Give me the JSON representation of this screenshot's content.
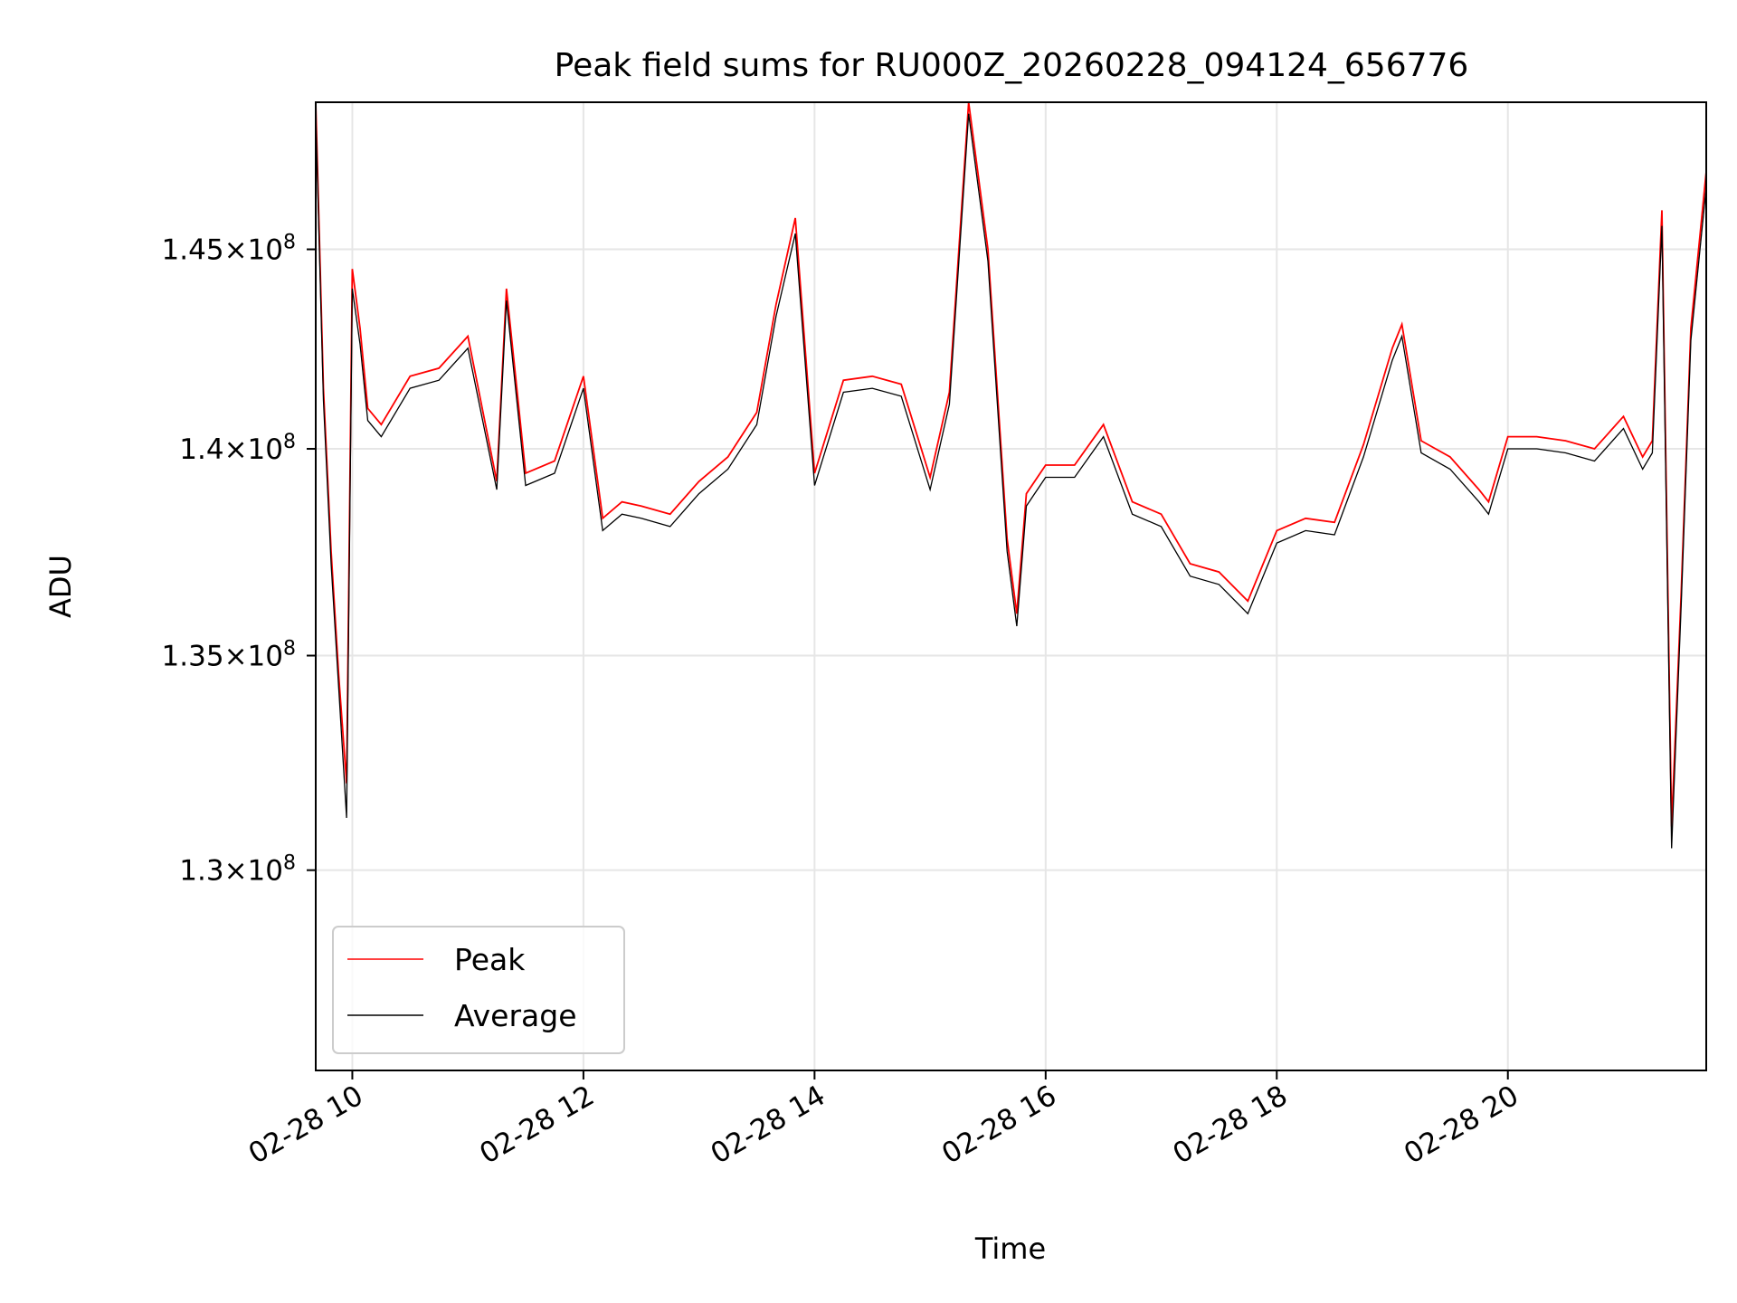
{
  "chart_data": {
    "type": "line",
    "title": "Peak field sums for RU000Z_20260228_094124_656776",
    "xlabel": "Time",
    "ylabel": "ADU",
    "y_scale": "log",
    "ylim": [
      125500000,
      148800000
    ],
    "xlim": [
      "02-28 09:41",
      "02-28 21:43"
    ],
    "grid": true,
    "legend_position": "lower-left",
    "x_ticks": [
      {
        "t": "02-28 10:00",
        "label": "02-28 10"
      },
      {
        "t": "02-28 12:00",
        "label": "02-28 12"
      },
      {
        "t": "02-28 14:00",
        "label": "02-28 14"
      },
      {
        "t": "02-28 16:00",
        "label": "02-28 16"
      },
      {
        "t": "02-28 18:00",
        "label": "02-28 18"
      },
      {
        "t": "02-28 20:00",
        "label": "02-28 20"
      }
    ],
    "y_ticks": [
      {
        "value": 130000000,
        "mantissa": "1.3",
        "exp": "8"
      },
      {
        "value": 135000000,
        "mantissa": "1.35",
        "exp": "8"
      },
      {
        "value": 140000000,
        "mantissa": "1.4",
        "exp": "8"
      },
      {
        "value": 145000000,
        "mantissa": "1.45",
        "exp": "8"
      }
    ],
    "x": [
      "02-28 09:41",
      "02-28 09:45",
      "02-28 09:49",
      "02-28 09:53",
      "02-28 09:57",
      "02-28 10:00",
      "02-28 10:04",
      "02-28 10:08",
      "02-28 10:15",
      "02-28 10:30",
      "02-28 10:45",
      "02-28 11:00",
      "02-28 11:15",
      "02-28 11:20",
      "02-28 11:30",
      "02-28 11:45",
      "02-28 12:00",
      "02-28 12:10",
      "02-28 12:20",
      "02-28 12:30",
      "02-28 12:45",
      "02-28 13:00",
      "02-28 13:15",
      "02-28 13:30",
      "02-28 13:40",
      "02-28 13:50",
      "02-28 14:00",
      "02-28 14:15",
      "02-28 14:30",
      "02-28 14:45",
      "02-28 15:00",
      "02-28 15:10",
      "02-28 15:20",
      "02-28 15:30",
      "02-28 15:40",
      "02-28 15:45",
      "02-28 15:50",
      "02-28 16:00",
      "02-28 16:15",
      "02-28 16:30",
      "02-28 16:45",
      "02-28 17:00",
      "02-28 17:15",
      "02-28 17:30",
      "02-28 17:45",
      "02-28 18:00",
      "02-28 18:15",
      "02-28 18:30",
      "02-28 18:45",
      "02-28 19:00",
      "02-28 19:05",
      "02-28 19:15",
      "02-28 19:30",
      "02-28 19:45",
      "02-28 19:50",
      "02-28 20:00",
      "02-28 20:15",
      "02-28 20:30",
      "02-28 20:45",
      "02-28 21:00",
      "02-28 21:10",
      "02-28 21:15",
      "02-28 21:20",
      "02-28 21:25",
      "02-28 21:30",
      "02-28 21:35",
      "02-28 21:43"
    ],
    "series": [
      {
        "name": "Peak",
        "color": "#ff0000",
        "values": [
          148800000,
          141500000,
          137500000,
          134500000,
          132000000,
          144500000,
          143000000,
          141000000,
          140600000,
          141800000,
          142000000,
          142800000,
          139200000,
          144000000,
          139400000,
          139700000,
          141800000,
          138300000,
          138700000,
          138600000,
          138400000,
          139200000,
          139800000,
          140900000,
          143600000,
          145800000,
          139400000,
          141700000,
          141800000,
          141600000,
          139300000,
          141400000,
          148800000,
          145000000,
          137800000,
          136000000,
          138900000,
          139600000,
          139600000,
          140600000,
          138700000,
          138400000,
          137200000,
          137000000,
          136300000,
          138000000,
          138300000,
          138200000,
          140100000,
          142500000,
          143100000,
          140200000,
          139800000,
          139000000,
          138700000,
          140300000,
          140300000,
          140200000,
          140000000,
          140800000,
          139800000,
          140200000,
          146000000,
          131000000,
          136500000,
          143000000,
          147000000
        ]
      },
      {
        "name": "Average",
        "color": "#000000",
        "values": [
          148500000,
          141200000,
          137200000,
          134200000,
          131200000,
          144000000,
          142600000,
          140700000,
          140300000,
          141500000,
          141700000,
          142500000,
          139000000,
          143700000,
          139100000,
          139400000,
          141500000,
          138000000,
          138400000,
          138300000,
          138100000,
          138900000,
          139500000,
          140600000,
          143300000,
          145400000,
          139100000,
          141400000,
          141500000,
          141300000,
          139000000,
          141100000,
          148500000,
          144700000,
          137500000,
          135700000,
          138600000,
          139300000,
          139300000,
          140300000,
          138400000,
          138100000,
          136900000,
          136700000,
          136000000,
          137700000,
          138000000,
          137900000,
          139800000,
          142200000,
          142800000,
          139900000,
          139500000,
          138700000,
          138400000,
          140000000,
          140000000,
          139900000,
          139700000,
          140500000,
          139500000,
          139900000,
          145600000,
          130500000,
          136200000,
          142700000,
          146600000
        ]
      }
    ]
  }
}
